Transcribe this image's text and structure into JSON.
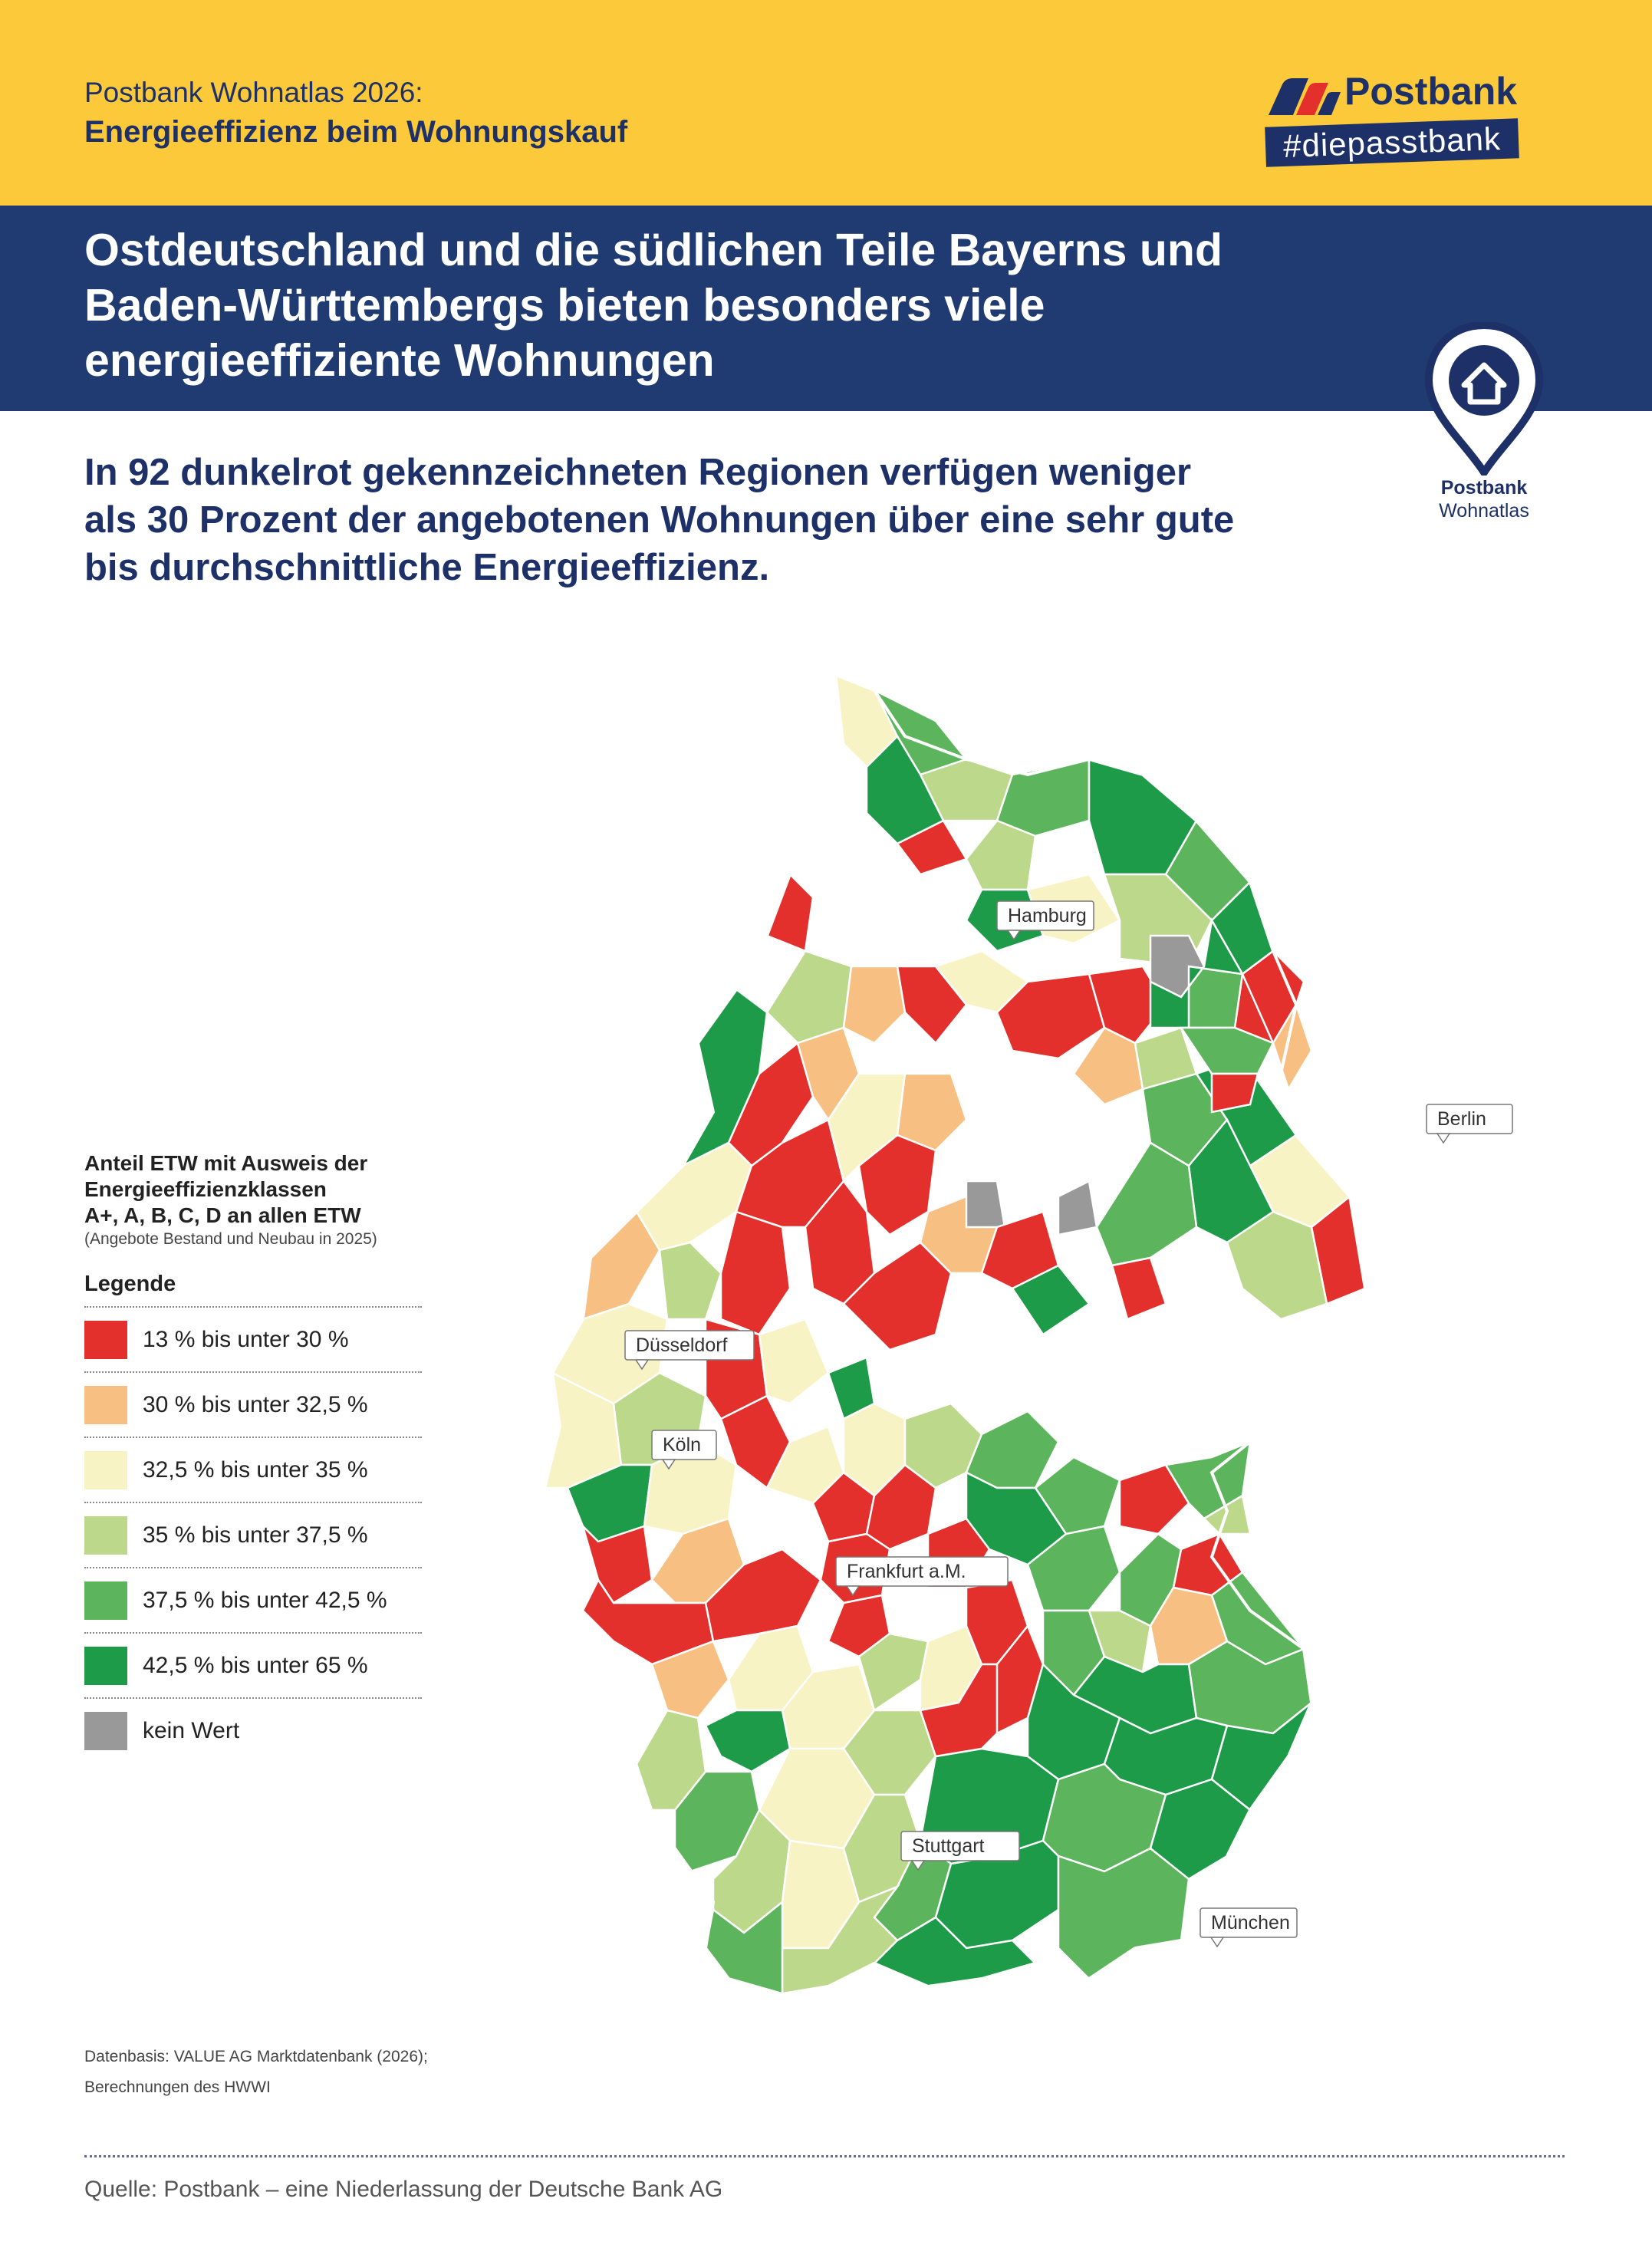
{
  "header": {
    "line1": "Postbank Wohnatlas 2026:",
    "line2": "Energieeffizienz beim Wohnungskauf"
  },
  "logo": {
    "name": "Postbank",
    "tagline": "#diepasstbank"
  },
  "headline": "Ostdeutschland und die südlichen Teile Bayerns und Baden-Württembergs bieten besonders viele energieeffiziente Wohnungen",
  "badge": {
    "name": "Postbank",
    "sub": "Wohnatlas"
  },
  "intro": "In 92 dunkelrot gekennzeichneten Regionen verfügen weniger als 30 Prozent der angebotenen Wohnungen über eine sehr gute bis durchschnittliche Energieeffizienz.",
  "legend": {
    "title_lines": [
      "Anteil ETW mit Ausweis der",
      "Energieeffizienzklassen",
      "A+, A, B, C, D an allen ETW"
    ],
    "note": "(Angebote Bestand und Neubau in 2025)",
    "heading": "Legende",
    "items": [
      {
        "label": "13 % bis unter 30 %",
        "color": "#e3302c"
      },
      {
        "label": "30 % bis unter 32,5 %",
        "color": "#f7c082"
      },
      {
        "label": "32,5 % bis unter 35 %",
        "color": "#f7f3c4"
      },
      {
        "label": "35 % bis unter 37,5 %",
        "color": "#bcd88a"
      },
      {
        "label": "37,5 % bis unter 42,5 %",
        "color": "#5cb55c"
      },
      {
        "label": "42,5 % bis unter 65 %",
        "color": "#1d9b48"
      },
      {
        "label": "kein Wert",
        "color": "#999999"
      }
    ]
  },
  "cities": [
    {
      "name": "Hamburg"
    },
    {
      "name": "Berlin"
    },
    {
      "name": "Düsseldorf"
    },
    {
      "name": "Köln"
    },
    {
      "name": "Frankfurt a.M."
    },
    {
      "name": "Stuttgart"
    },
    {
      "name": "München"
    }
  ],
  "footnote": {
    "line1": "Datenbasis: VALUE AG Marktdatenbank (2026);",
    "line2": "Berechnungen des HWWI"
  },
  "source": "Quelle: Postbank – eine Niederlassung der Deutsche Bank AG"
}
